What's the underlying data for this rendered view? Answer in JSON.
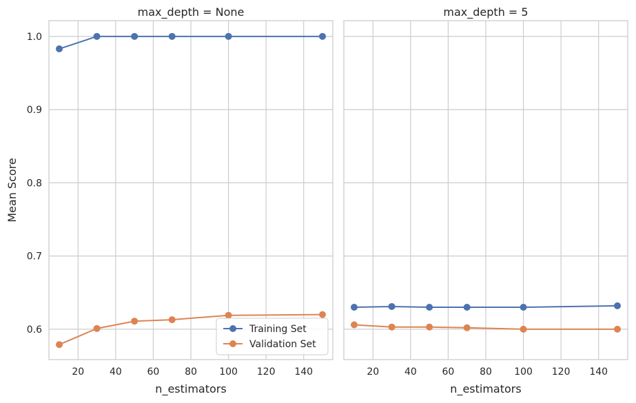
{
  "chart_data": [
    {
      "type": "line",
      "title": "max_depth = None",
      "xlabel": "n_estimators",
      "ylabel": "Mean Score",
      "xlim": [
        4.5,
        155.5
      ],
      "ylim": [
        0.5585,
        1.0215
      ],
      "x_ticks": [
        20,
        40,
        60,
        80,
        100,
        120,
        140
      ],
      "y_ticks": [
        0.6,
        0.7,
        0.8,
        0.9,
        1.0
      ],
      "grid": true,
      "legend": "lower-right",
      "x": [
        10,
        30,
        50,
        70,
        100,
        150
      ],
      "series": [
        {
          "name": "Training Set",
          "color": "#4c72b0",
          "values": [
            0.983,
            1.0,
            1.0,
            1.0,
            1.0,
            1.0
          ]
        },
        {
          "name": "Validation Set",
          "color": "#dd8452",
          "values": [
            0.579,
            0.601,
            0.611,
            0.613,
            0.619,
            0.62
          ]
        }
      ]
    },
    {
      "type": "line",
      "title": "max_depth = 5",
      "xlabel": "n_estimators",
      "ylabel": "",
      "xlim": [
        4.5,
        155.5
      ],
      "ylim": [
        0.5585,
        1.0215
      ],
      "x_ticks": [
        20,
        40,
        60,
        80,
        100,
        120,
        140
      ],
      "y_ticks": [
        0.6,
        0.7,
        0.8,
        0.9,
        1.0
      ],
      "grid": true,
      "x": [
        10,
        30,
        50,
        70,
        100,
        150
      ],
      "series": [
        {
          "name": "Training Set",
          "color": "#4c72b0",
          "values": [
            0.63,
            0.631,
            0.63,
            0.63,
            0.63,
            0.632
          ]
        },
        {
          "name": "Validation Set",
          "color": "#dd8452",
          "values": [
            0.606,
            0.603,
            0.603,
            0.602,
            0.6,
            0.6
          ]
        }
      ]
    }
  ]
}
